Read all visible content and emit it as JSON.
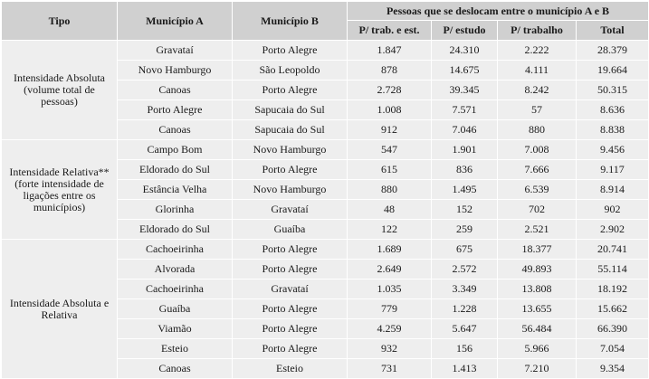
{
  "header": {
    "tipo": "Tipo",
    "municipio_a": "Município A",
    "municipio_b": "Município B",
    "group": "Pessoas que se deslocam entre o município A e B",
    "sub": [
      "P/ trab. e est.",
      "P/ estudo",
      "P/ trabalho",
      "Total"
    ]
  },
  "groups": [
    {
      "tipo": "Intensidade Absoluta (volume total de pessoas)",
      "rows": [
        {
          "a": "Gravataí",
          "b": "Porto Alegre",
          "trab_est": "1.847",
          "estudo": "24.310",
          "trabalho": "2.222",
          "total": "28.379"
        },
        {
          "a": "Novo Hamburgo",
          "b": "São Leopoldo",
          "trab_est": "878",
          "estudo": "14.675",
          "trabalho": "4.111",
          "total": "19.664"
        },
        {
          "a": "Canoas",
          "b": "Porto Alegre",
          "trab_est": "2.728",
          "estudo": "39.345",
          "trabalho": "8.242",
          "total": "50.315"
        },
        {
          "a": "Porto Alegre",
          "b": "Sapucaia do Sul",
          "trab_est": "1.008",
          "estudo": "7.571",
          "trabalho": "57",
          "total": "8.636"
        },
        {
          "a": "Canoas",
          "b": "Sapucaia do Sul",
          "trab_est": "912",
          "estudo": "7.046",
          "trabalho": "880",
          "total": "8.838"
        }
      ]
    },
    {
      "tipo": "Intensidade Relativa** (forte intensidade de ligações entre os municípios)",
      "rows": [
        {
          "a": "Campo Bom",
          "b": "Novo Hamburgo",
          "trab_est": "547",
          "estudo": "1.901",
          "trabalho": "7.008",
          "total": "9.456"
        },
        {
          "a": "Eldorado do Sul",
          "b": "Porto Alegre",
          "trab_est": "615",
          "estudo": "836",
          "trabalho": "7.666",
          "total": "9.117"
        },
        {
          "a": "Estância Velha",
          "b": "Novo Hamburgo",
          "trab_est": "880",
          "estudo": "1.495",
          "trabalho": "6.539",
          "total": "8.914"
        },
        {
          "a": "Glorinha",
          "b": "Gravataí",
          "trab_est": "48",
          "estudo": "152",
          "trabalho": "702",
          "total": "902"
        },
        {
          "a": "Eldorado do Sul",
          "b": "Guaíba",
          "trab_est": "122",
          "estudo": "259",
          "trabalho": "2.521",
          "total": "2.902"
        }
      ]
    },
    {
      "tipo": "Intensidade Absoluta e Relativa",
      "rows": [
        {
          "a": "Cachoeirinha",
          "b": "Porto Alegre",
          "trab_est": "1.689",
          "estudo": "675",
          "trabalho": "18.377",
          "total": "20.741"
        },
        {
          "a": "Alvorada",
          "b": "Porto Alegre",
          "trab_est": "2.649",
          "estudo": "2.572",
          "trabalho": "49.893",
          "total": "55.114"
        },
        {
          "a": "Cachoeirinha",
          "b": "Gravataí",
          "trab_est": "1.035",
          "estudo": "3.349",
          "trabalho": "13.808",
          "total": "18.192"
        },
        {
          "a": "Guaíba",
          "b": "Porto Alegre",
          "trab_est": "779",
          "estudo": "1.228",
          "trabalho": "13.655",
          "total": "15.662"
        },
        {
          "a": "Viamão",
          "b": "Porto Alegre",
          "trab_est": "4.259",
          "estudo": "5.647",
          "trabalho": "56.484",
          "total": "66.390"
        },
        {
          "a": "Esteio",
          "b": "Porto Alegre",
          "trab_est": "932",
          "estudo": "156",
          "trabalho": "5.966",
          "total": "7.054"
        },
        {
          "a": "Canoas",
          "b": "Esteio",
          "trab_est": "731",
          "estudo": "1.413",
          "trabalho": "7.210",
          "total": "9.354"
        }
      ]
    }
  ]
}
